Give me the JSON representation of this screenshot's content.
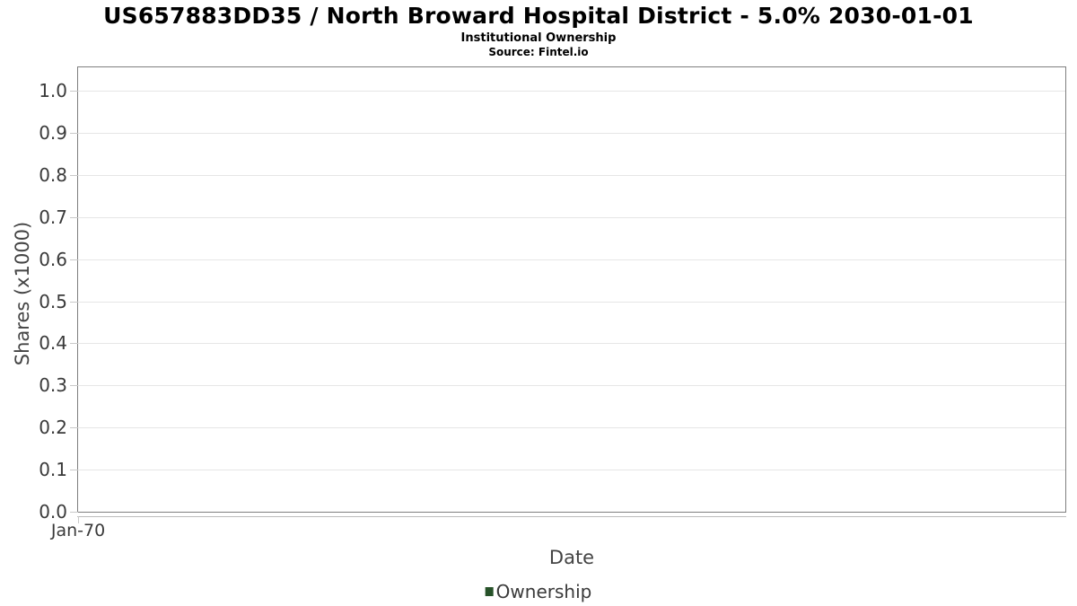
{
  "header": {
    "title": "US657883DD35 / North Broward Hospital District - 5.0% 2030-01-01",
    "subtitle": "Institutional Ownership",
    "source": "Source: Fintel.io"
  },
  "chart_data": {
    "type": "line",
    "title": "US657883DD35 / North Broward Hospital District - 5.0% 2030-01-01",
    "subtitle": "Institutional Ownership",
    "source": "Source: Fintel.io",
    "xlabel": "Date",
    "ylabel": "Shares (x1000)",
    "x_ticks": [
      "Jan-70"
    ],
    "y_ticks": [
      0.0,
      0.1,
      0.2,
      0.3,
      0.4,
      0.5,
      0.6,
      0.7,
      0.8,
      0.9,
      1.0
    ],
    "y_tick_labels": [
      "0.0",
      "0.1",
      "0.2",
      "0.3",
      "0.4",
      "0.5",
      "0.6",
      "0.7",
      "0.8",
      "0.9",
      "1.0"
    ],
    "ylim": [
      0.0,
      1.05
    ],
    "grid": true,
    "legend_position": "bottom",
    "series": [
      {
        "name": "Ownership",
        "color": "#275229",
        "x": [],
        "values": []
      }
    ]
  },
  "colors": {
    "title": "#000000",
    "plot_border": "#7f7f7f",
    "gridline": "#e6e6e6",
    "axis_line": "#bbbbbb",
    "tick": "#c9c9c9",
    "tick_label": "#3a3a3a",
    "axis_title": "#444444",
    "legend_text": "#3a3a3a",
    "series_color": "#275229"
  }
}
